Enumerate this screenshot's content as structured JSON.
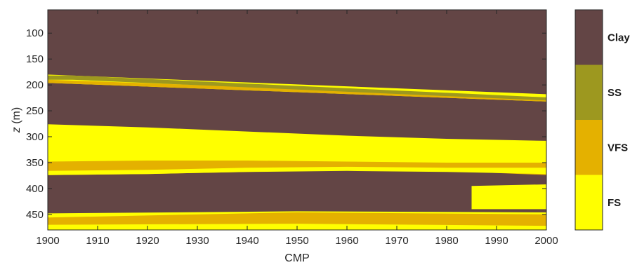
{
  "chart_data": {
    "type": "heatmap",
    "xlabel": "CMP",
    "ylabel": "z (m)",
    "xlim": [
      1900,
      2000
    ],
    "ylim": [
      480,
      55
    ],
    "y_axis_direction": "reversed",
    "x_ticks": [
      1900,
      1910,
      1920,
      1930,
      1940,
      1950,
      1960,
      1970,
      1980,
      1990,
      2000
    ],
    "x_tick_labels": [
      "1900",
      "1910",
      "1920",
      "1930",
      "1940",
      "1950",
      "1960",
      "1970",
      "1980",
      "1990",
      "2000"
    ],
    "y_ticks": [
      100,
      150,
      200,
      250,
      300,
      350,
      400,
      450
    ],
    "y_tick_labels": [
      "100",
      "150",
      "200",
      "250",
      "300",
      "350",
      "400",
      "450"
    ],
    "grid": false,
    "colorbar_position": "right",
    "classes": [
      {
        "name": "Clay",
        "color": "#634545"
      },
      {
        "name": "SS",
        "color": "#9d981f"
      },
      {
        "name": "VFS",
        "color": "#e4b100"
      },
      {
        "name": "FS",
        "color": "#ffff00"
      }
    ],
    "background_class": "Clay",
    "layers": [
      {
        "class": "FS",
        "top": [
          [
            1900,
            180
          ],
          [
            2000,
            218
          ]
        ],
        "bottom": [
          [
            1900,
            196
          ],
          [
            2000,
            232
          ]
        ]
      },
      {
        "class": "VFS",
        "top": [
          [
            1900,
            190
          ],
          [
            2000,
            224
          ]
        ],
        "bottom": [
          [
            1900,
            196
          ],
          [
            2000,
            232
          ]
        ]
      },
      {
        "class": "SS",
        "top": [
          [
            1900,
            182
          ],
          [
            1905,
            182
          ],
          [
            2000,
            224
          ]
        ],
        "bottom": [
          [
            1900,
            190
          ],
          [
            1905,
            190
          ],
          [
            2000,
            230
          ]
        ]
      },
      {
        "class": "FS",
        "top": [
          [
            1900,
            276
          ],
          [
            1920,
            282
          ],
          [
            1940,
            290
          ],
          [
            1960,
            298
          ],
          [
            1980,
            304
          ],
          [
            2000,
            308
          ]
        ],
        "bottom": [
          [
            1900,
            372
          ],
          [
            1920,
            370
          ],
          [
            1940,
            366
          ],
          [
            1950,
            360
          ],
          [
            1960,
            358
          ],
          [
            1980,
            356
          ],
          [
            2000,
            356
          ]
        ]
      },
      {
        "class": "VFS",
        "top": [
          [
            1900,
            348
          ],
          [
            1920,
            346
          ],
          [
            1940,
            346
          ],
          [
            1960,
            348
          ],
          [
            1980,
            350
          ],
          [
            2000,
            350
          ]
        ],
        "bottom": [
          [
            1900,
            374
          ],
          [
            1920,
            372
          ],
          [
            1940,
            368
          ],
          [
            1960,
            364
          ],
          [
            1980,
            366
          ],
          [
            2000,
            374
          ]
        ]
      },
      {
        "class": "FS",
        "top": [
          [
            1900,
            366
          ],
          [
            1920,
            364
          ],
          [
            1940,
            360
          ],
          [
            1960,
            358
          ],
          [
            1980,
            360
          ],
          [
            2000,
            360
          ]
        ],
        "bottom": [
          [
            1900,
            374
          ],
          [
            1920,
            372
          ],
          [
            1940,
            368
          ],
          [
            1960,
            366
          ],
          [
            1980,
            368
          ],
          [
            2000,
            372
          ]
        ]
      },
      {
        "class": "FS",
        "top": [
          [
            1985,
            395
          ],
          [
            2000,
            392
          ]
        ],
        "bottom": [
          [
            1985,
            440
          ],
          [
            2000,
            440
          ]
        ]
      },
      {
        "class": "FS",
        "top": [
          [
            1900,
            448
          ],
          [
            1950,
            444
          ],
          [
            2000,
            446
          ]
        ],
        "bottom": [
          [
            1900,
            480
          ],
          [
            2000,
            480
          ]
        ]
      },
      {
        "class": "VFS",
        "top": [
          [
            1900,
            456
          ],
          [
            1950,
            446
          ],
          [
            2000,
            450
          ]
        ],
        "bottom": [
          [
            1900,
            470
          ],
          [
            1950,
            468
          ],
          [
            2000,
            472
          ]
        ]
      }
    ]
  }
}
